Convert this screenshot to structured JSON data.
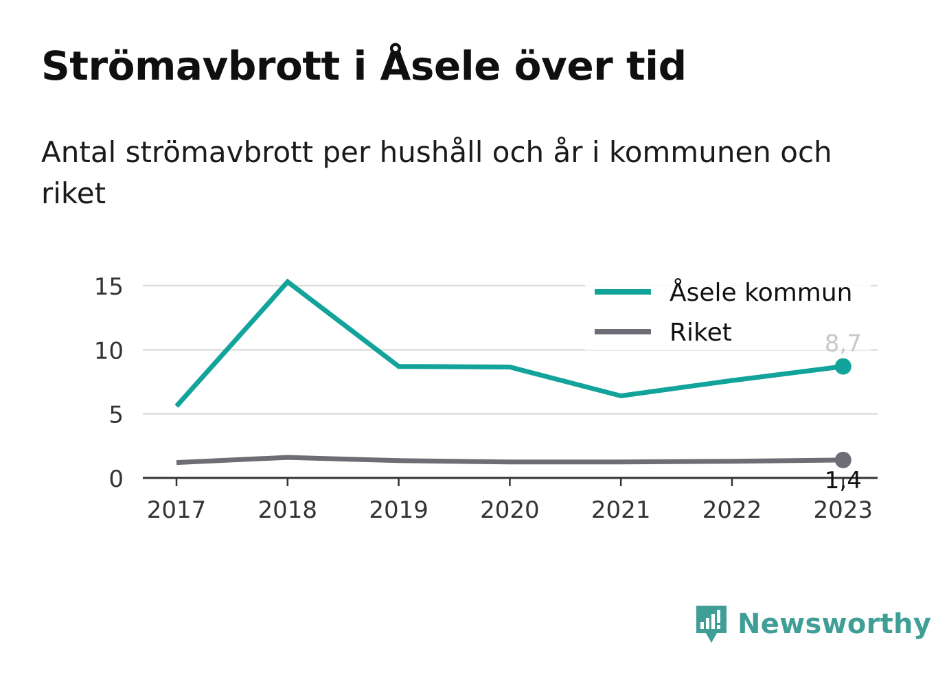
{
  "header": {
    "title": "Strömavbrott i Åsele över tid",
    "subtitle": "Antal strömavbrott per hushåll och år i kommunen och riket"
  },
  "brand": {
    "name": "Newsworthy",
    "icon": "newsworthy-logo-icon",
    "color": "#3f9e96"
  },
  "chart_data": {
    "type": "line",
    "categories": [
      "2017",
      "2018",
      "2019",
      "2020",
      "2021",
      "2022",
      "2023"
    ],
    "series": [
      {
        "name": "Åsele kommun",
        "color": "#12a39a",
        "values": [
          5.6,
          15.3,
          8.7,
          8.65,
          6.4,
          7.6,
          8.7
        ],
        "end_label": "8,7"
      },
      {
        "name": "Riket",
        "color": "#6e6d75",
        "values": [
          1.2,
          1.6,
          1.35,
          1.25,
          1.25,
          1.3,
          1.4
        ],
        "end_label": "1,4"
      }
    ],
    "y_ticks": [
      "0",
      "5",
      "10",
      "15"
    ],
    "y_tick_values": [
      0,
      5,
      10,
      15
    ],
    "ylim": [
      0,
      15
    ],
    "grid": true,
    "legend_position": "top-right"
  }
}
